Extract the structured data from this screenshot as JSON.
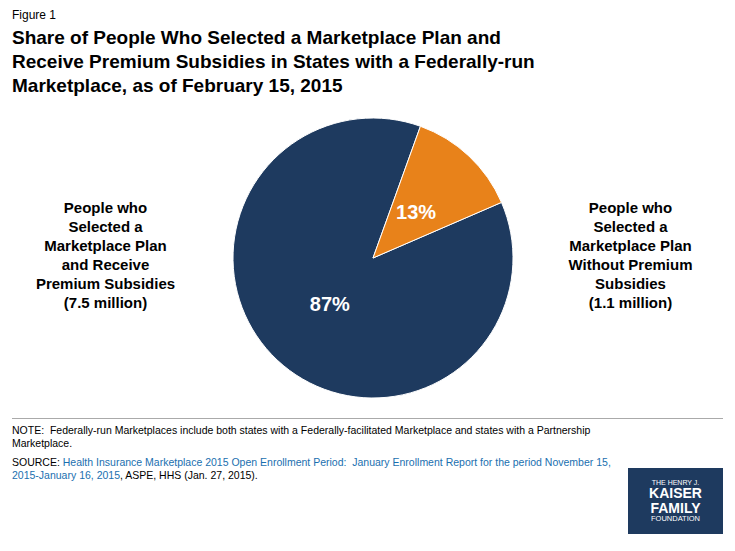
{
  "chart_data": {
    "type": "pie",
    "figure_label": "Figure 1",
    "title": "Share of People Who Selected a Marketplace Plan and\nReceive Premium Subsidies in States with a Federally-run\nMarketplace, as of February 15, 2015",
    "categories": [
      "People who\nSelected a\nMarketplace Plan\nand Receive\nPremium Subsidies\n(7.5 million)",
      "People who\nSelected a\nMarketplace Plan\nWithout Premium\nSubsidies\n(1.1 million)"
    ],
    "values": [
      87,
      13
    ],
    "value_labels": [
      "87%",
      "13%"
    ],
    "data_labels": true,
    "colors": [
      "#1e3a5f",
      "#e8821a"
    ],
    "note": "NOTE:  Federally-run Marketplaces include both states with a Federally-facilitated Marketplace and states with a Partnership\nMarketplace.",
    "source": {
      "prefix": "SOURCE: ",
      "link": "Health Insurance Marketplace 2015 Open Enrollment Period:  January Enrollment Report for the period November 15,\n2015-January 16, 2015",
      "suffix": ", ASPE, HHS (Jan. 27, 2015).",
      "color": "#1a6faf"
    },
    "logo": {
      "lines": [
        "THE HENRY J.",
        "KAISER",
        "FAMILY",
        "FOUNDATION"
      ],
      "color": "#1e3a5f"
    }
  }
}
